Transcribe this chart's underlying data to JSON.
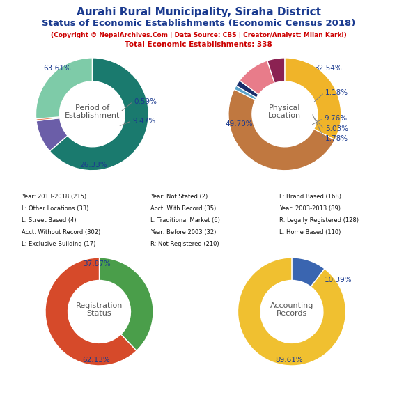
{
  "title_line1": "Aurahi Rural Municipality, Siraha District",
  "title_line2": "Status of Economic Establishments (Economic Census 2018)",
  "subtitle": "(Copyright © NepalArchives.Com | Data Source: CBS | Creator/Analyst: Milan Karki)",
  "total_line": "Total Economic Establishments: 338",
  "pie1_title": "Period of\nEstablishment",
  "pie1_values": [
    215,
    32,
    2,
    89
  ],
  "pie1_colors": [
    "#1a7a6e",
    "#6b5ea8",
    "#e8845a",
    "#7ecba8"
  ],
  "pie1_pct": [
    "63.61%",
    "9.47%",
    "0.59%",
    "26.33%"
  ],
  "pie2_title": "Physical\nLocation",
  "pie2_values": [
    110,
    168,
    4,
    6,
    33,
    17
  ],
  "pie2_colors": [
    "#f0b429",
    "#c07840",
    "#5ba3c9",
    "#1a2d6b",
    "#e87c8a",
    "#8b2252"
  ],
  "pie2_pct": [
    "32.54%",
    "49.70%",
    "1.18%",
    "1.78%",
    "9.76%",
    "5.03%"
  ],
  "pie3_title": "Registration\nStatus",
  "pie3_values": [
    128,
    210
  ],
  "pie3_colors": [
    "#4a9e4a",
    "#d64a2a"
  ],
  "pie3_pct": [
    "37.87%",
    "62.13%"
  ],
  "pie4_title": "Accounting\nRecords",
  "pie4_values": [
    35,
    302
  ],
  "pie4_colors": [
    "#3a65b0",
    "#f0c030"
  ],
  "pie4_pct": [
    "10.39%",
    "89.61%"
  ],
  "legend_items": [
    {
      "label": "Year: 2013-2018 (215)",
      "color": "#1a7a6e"
    },
    {
      "label": "Year: Not Stated (2)",
      "color": "#e8845a"
    },
    {
      "label": "L: Brand Based (168)",
      "color": "#c07840"
    },
    {
      "label": "L: Other Locations (33)",
      "color": "#e87c8a"
    },
    {
      "label": "Acct: With Record (35)",
      "color": "#3a65b0"
    },
    {
      "label": "Year: 2003-2013 (89)",
      "color": "#7ecba8"
    },
    {
      "label": "L: Street Based (4)",
      "color": "#5ba3c9"
    },
    {
      "label": "L: Traditional Market (6)",
      "color": "#1a2d6b"
    },
    {
      "label": "R: Legally Registered (128)",
      "color": "#4a9e4a"
    },
    {
      "label": "Acct: Without Record (302)",
      "color": "#f0c030"
    },
    {
      "label": "Year: Before 2003 (32)",
      "color": "#6b5ea8"
    },
    {
      "label": "L: Home Based (110)",
      "color": "#f0b429"
    },
    {
      "label": "L: Exclusive Building (17)",
      "color": "#8b2252"
    },
    {
      "label": "R: Not Registered (210)",
      "color": "#d64a2a"
    }
  ],
  "bg_color": "#ffffff",
  "title_color": "#1a3a8f",
  "subtitle_color": "#cc0000",
  "label_color": "#1a3a8f"
}
